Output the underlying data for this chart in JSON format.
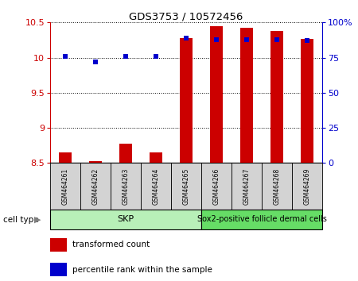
{
  "title": "GDS3753 / 10572456",
  "samples": [
    "GSM464261",
    "GSM464262",
    "GSM464263",
    "GSM464264",
    "GSM464265",
    "GSM464266",
    "GSM464267",
    "GSM464268",
    "GSM464269"
  ],
  "red_values": [
    8.65,
    8.53,
    8.78,
    8.65,
    10.28,
    10.45,
    10.43,
    10.38,
    10.27
  ],
  "blue_values": [
    76,
    72,
    76,
    76,
    89,
    88,
    88,
    88,
    87
  ],
  "ylim_left": [
    8.5,
    10.5
  ],
  "ylim_right": [
    0,
    100
  ],
  "yticks_left": [
    8.5,
    9.0,
    9.5,
    10.0,
    10.5
  ],
  "ytick_labels_left": [
    "8.5",
    "9",
    "9.5",
    "10",
    "10.5"
  ],
  "yticks_right": [
    0,
    25,
    50,
    75,
    100
  ],
  "ytick_labels_right": [
    "0",
    "25",
    "50",
    "75",
    "100%"
  ],
  "cell_type_label": "cell type",
  "legend_red": "transformed count",
  "legend_blue": "percentile rank within the sample",
  "bar_color": "#cc0000",
  "dot_color": "#0000cc",
  "left_axis_color": "#cc0000",
  "right_axis_color": "#0000cc",
  "bg_color": "#ffffff",
  "sample_bg_color": "#d3d3d3",
  "skp_color": "#b8f0b8",
  "sox2_color": "#66dd66",
  "bar_width": 0.4,
  "dot_size": 4,
  "skp_count": 5,
  "sox2_count": 4,
  "skp_label": "SKP",
  "sox2_label": "Sox2-positive follicle dermal cells"
}
